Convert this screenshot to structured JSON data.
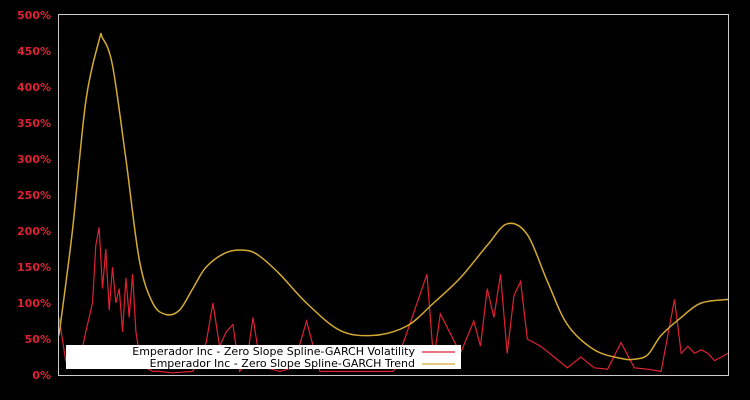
{
  "chart_data": {
    "type": "line",
    "title": "",
    "xlabel": "",
    "ylabel": "",
    "ylim": [
      0,
      500
    ],
    "y_ticks": [
      "0%",
      "50%",
      "100%",
      "150%",
      "200%",
      "250%",
      "300%",
      "350%",
      "400%",
      "450%",
      "500%"
    ],
    "grid": false,
    "legend_position": "bottom-left inside plot",
    "colors": {
      "background": "#000000",
      "axis": "#cccccc",
      "tick_label": "#dd2233",
      "volatility": "#dd2233",
      "trend": "#d4aa33"
    },
    "series": [
      {
        "name": "Emperador Inc - Zero Slope Spline-GARCH Volatility",
        "color": "#dd2233",
        "x": [
          0.0,
          0.01,
          0.02,
          0.03,
          0.04,
          0.05,
          0.055,
          0.06,
          0.065,
          0.07,
          0.075,
          0.08,
          0.085,
          0.09,
          0.095,
          0.1,
          0.105,
          0.11,
          0.115,
          0.12,
          0.13,
          0.14,
          0.15,
          0.17,
          0.2,
          0.22,
          0.23,
          0.24,
          0.25,
          0.26,
          0.27,
          0.28,
          0.29,
          0.3,
          0.31,
          0.33,
          0.35,
          0.37,
          0.39,
          0.41,
          0.43,
          0.45,
          0.5,
          0.55,
          0.56,
          0.57,
          0.6,
          0.62,
          0.63,
          0.64,
          0.65,
          0.66,
          0.67,
          0.68,
          0.69,
          0.7,
          0.72,
          0.74,
          0.76,
          0.78,
          0.8,
          0.82,
          0.84,
          0.86,
          0.88,
          0.9,
          0.92,
          0.93,
          0.94,
          0.95,
          0.96,
          0.97,
          0.98,
          0.99,
          1.0
        ],
        "values": [
          80,
          20,
          30,
          15,
          60,
          100,
          180,
          205,
          120,
          175,
          90,
          150,
          100,
          120,
          60,
          135,
          80,
          140,
          60,
          30,
          10,
          5,
          5,
          3,
          5,
          45,
          100,
          40,
          60,
          70,
          5,
          15,
          80,
          20,
          10,
          5,
          10,
          75,
          5,
          5,
          5,
          5,
          5,
          140,
          20,
          85,
          30,
          75,
          40,
          120,
          80,
          140,
          30,
          110,
          130,
          50,
          40,
          25,
          10,
          25,
          10,
          8,
          45,
          10,
          8,
          5,
          105,
          30,
          40,
          30,
          35,
          30,
          20,
          25,
          30
        ]
      },
      {
        "name": "Emperador Inc - Zero Slope Spline-GARCH Trend",
        "color": "#d4aa33",
        "x": [
          0.0,
          0.02,
          0.04,
          0.06,
          0.065,
          0.08,
          0.1,
          0.12,
          0.14,
          0.16,
          0.18,
          0.2,
          0.22,
          0.25,
          0.28,
          0.3,
          0.33,
          0.37,
          0.42,
          0.47,
          0.52,
          0.56,
          0.6,
          0.64,
          0.67,
          0.7,
          0.73,
          0.76,
          0.8,
          0.84,
          0.86,
          0.88,
          0.9,
          0.93,
          0.96,
          1.0
        ],
        "values": [
          55,
          200,
          380,
          465,
          468,
          430,
          300,
          160,
          100,
          84,
          90,
          120,
          150,
          170,
          173,
          165,
          140,
          100,
          62,
          55,
          68,
          100,
          135,
          180,
          210,
          195,
          130,
          70,
          35,
          23,
          22,
          28,
          55,
          80,
          100,
          105
        ]
      }
    ]
  },
  "legend": {
    "items": [
      {
        "label": "Emperador Inc - Zero Slope Spline-GARCH Volatility",
        "color": "#dd2233"
      },
      {
        "label": "Emperador Inc - Zero Slope Spline-GARCH Trend",
        "color": "#d4aa33"
      }
    ]
  }
}
